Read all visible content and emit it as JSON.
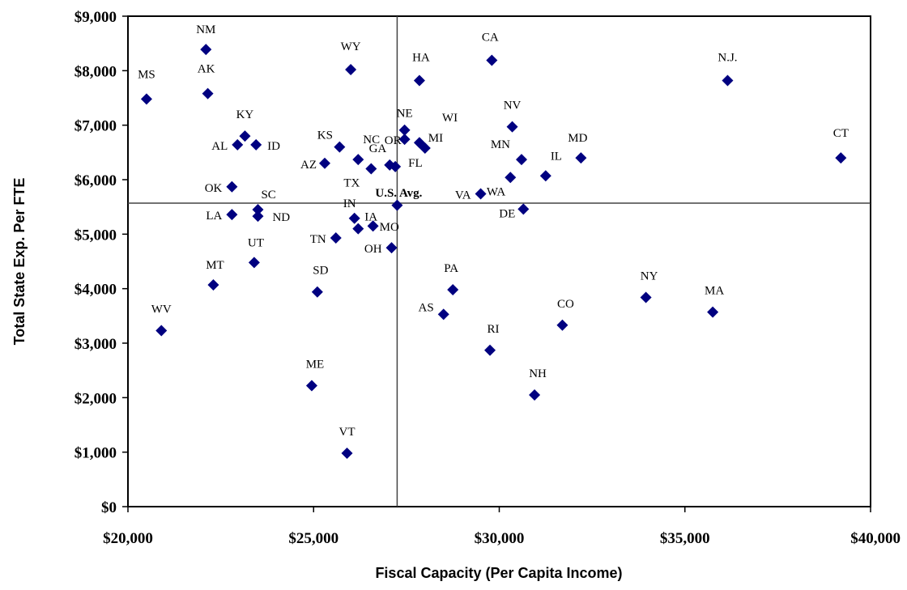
{
  "chart_data": {
    "type": "scatter",
    "xlabel": "Fiscal Capacity (Per Capita Income)",
    "ylabel": "Total State Exp. Per FTE",
    "xlim": [
      20000,
      40000
    ],
    "ylim": [
      0,
      9000
    ],
    "x_ticks": [
      "$20,000",
      "$25,000",
      "$30,000",
      "$35,000",
      "$40,000"
    ],
    "y_ticks": [
      "$0",
      "$1,000",
      "$2,000",
      "$3,000",
      "$4,000",
      "$5,000",
      "$6,000",
      "$7,000",
      "$8,000",
      "$9,000"
    ],
    "marker": "diamond",
    "marker_color": "#000080",
    "grid": false,
    "reference_lines": {
      "x": 27250,
      "y": 5570,
      "label": "U.S. Avg."
    },
    "points": [
      {
        "label": "MS",
        "x": 20500,
        "y": 7480
      },
      {
        "label": "NM",
        "x": 22100,
        "y": 8390
      },
      {
        "label": "AK",
        "x": 22150,
        "y": 7580
      },
      {
        "label": "WY",
        "x": 26000,
        "y": 8020
      },
      {
        "label": "HA",
        "x": 27850,
        "y": 7820
      },
      {
        "label": "CA",
        "x": 29800,
        "y": 8190
      },
      {
        "label": "N.J.",
        "x": 36150,
        "y": 7820
      },
      {
        "label": "KY",
        "x": 23150,
        "y": 6800
      },
      {
        "label": "AL",
        "x": 22950,
        "y": 6640
      },
      {
        "label": "ID",
        "x": 23450,
        "y": 6640
      },
      {
        "label": "KS",
        "x": 25700,
        "y": 6600
      },
      {
        "label": "NC",
        "x": 26200,
        "y": 6370
      },
      {
        "label": "AZ",
        "x": 25300,
        "y": 6300
      },
      {
        "label": "TX",
        "x": 26550,
        "y": 6200
      },
      {
        "label": "GA",
        "x": 27050,
        "y": 6270
      },
      {
        "label": "NE",
        "x": 27450,
        "y": 6910
      },
      {
        "label": "OR",
        "x": 27450,
        "y": 6740
      },
      {
        "label": "WI",
        "x": 27850,
        "y": 6680
      },
      {
        "label": "MI",
        "x": 28000,
        "y": 6580
      },
      {
        "label": "FL",
        "x": 27200,
        "y": 6240
      },
      {
        "label": "NV",
        "x": 30350,
        "y": 6970
      },
      {
        "label": "MN",
        "x": 30600,
        "y": 6370
      },
      {
        "label": "MD",
        "x": 32200,
        "y": 6400
      },
      {
        "label": "IL",
        "x": 31250,
        "y": 6070
      },
      {
        "label": "WA",
        "x": 30300,
        "y": 6040
      },
      {
        "label": "VA",
        "x": 29500,
        "y": 5740
      },
      {
        "label": "CT",
        "x": 39200,
        "y": 6400
      },
      {
        "label": "OK",
        "x": 22800,
        "y": 5870
      },
      {
        "label": "SC",
        "x": 23500,
        "y": 5450
      },
      {
        "label": "LA",
        "x": 22800,
        "y": 5360
      },
      {
        "label": "ND",
        "x": 23500,
        "y": 5330
      },
      {
        "label": "IN",
        "x": 26100,
        "y": 5290
      },
      {
        "label": "IA",
        "x": 26200,
        "y": 5100
      },
      {
        "label": "MO",
        "x": 26600,
        "y": 5150
      },
      {
        "label": "TN",
        "x": 25600,
        "y": 4930
      },
      {
        "label": "OH",
        "x": 27100,
        "y": 4750
      },
      {
        "label": "DE",
        "x": 30650,
        "y": 5460
      },
      {
        "label": "UT",
        "x": 23400,
        "y": 4480
      },
      {
        "label": "MT",
        "x": 22300,
        "y": 4070
      },
      {
        "label": "SD",
        "x": 25100,
        "y": 3940
      },
      {
        "label": "PA",
        "x": 28750,
        "y": 3980
      },
      {
        "label": "AS",
        "x": 28500,
        "y": 3530
      },
      {
        "label": "NY",
        "x": 33950,
        "y": 3840
      },
      {
        "label": "MA",
        "x": 35750,
        "y": 3570
      },
      {
        "label": "WV",
        "x": 20900,
        "y": 3230
      },
      {
        "label": "CO",
        "x": 31700,
        "y": 3330
      },
      {
        "label": "RI",
        "x": 29750,
        "y": 2870
      },
      {
        "label": "ME",
        "x": 24950,
        "y": 2220
      },
      {
        "label": "NH",
        "x": 30950,
        "y": 2050
      },
      {
        "label": "VT",
        "x": 25900,
        "y": 980
      },
      {
        "label": "",
        "x": 27250,
        "y": 5530
      }
    ]
  }
}
